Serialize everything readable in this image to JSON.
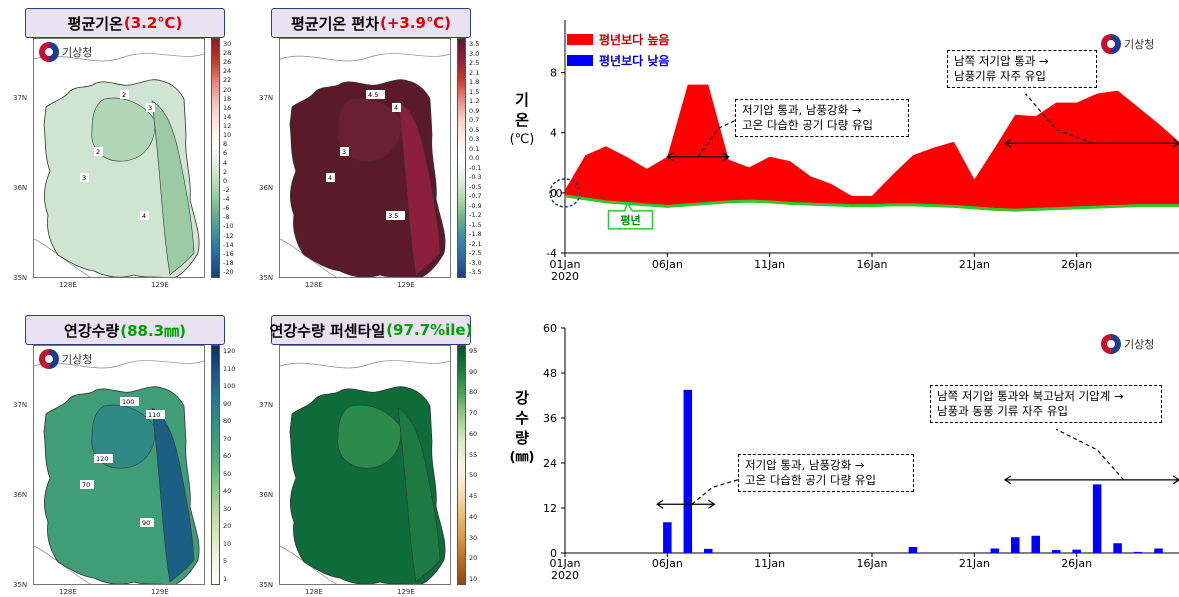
{
  "maps": {
    "temp": {
      "title": "평균기온",
      "highlight": "(3.2℃)",
      "hl_color": "#e00000",
      "cbar_labels": [
        "30",
        "28",
        "26",
        "24",
        "22",
        "20",
        "18",
        "16",
        "14",
        "12",
        "10",
        "8",
        "6",
        "4",
        "2",
        "0",
        "-2",
        "-4",
        "-6",
        "-8",
        "-10",
        "-12",
        "-14",
        "-16",
        "-18",
        "-20"
      ],
      "contour_labels": [
        "2",
        "3",
        "2",
        "3",
        "4"
      ]
    },
    "anom": {
      "title": "평균기온 편차",
      "highlight": "(+3.9℃)",
      "hl_color": "#e00000",
      "cbar_labels": [
        "3.5",
        "3.0",
        "2.5",
        "2.1",
        "1.8",
        "1.5",
        "1.2",
        "0.9",
        "0.7",
        "0.5",
        "0.3",
        "0.1",
        "0.0",
        "-0.1",
        "-0.3",
        "-0.5",
        "-0.7",
        "-0.9",
        "-1.2",
        "-1.5",
        "-1.8",
        "-2.1",
        "-2.5",
        "-3.0",
        "-3.5"
      ],
      "contour_labels": [
        "4.5",
        "4",
        "3",
        "4",
        "3.5"
      ]
    },
    "precip": {
      "title": "연강수량",
      "highlight": "(88.3㎜)",
      "hl_color": "#00a000",
      "cbar_labels": [
        "120",
        "110",
        "100",
        "90",
        "80",
        "70",
        "60",
        "50",
        "40",
        "30",
        "20",
        "10",
        "5",
        "1"
      ],
      "contour_labels": [
        "100",
        "110",
        "120",
        "70",
        "90"
      ]
    },
    "pct": {
      "title": "연강수량 퍼센타일",
      "highlight": "(97.7%ile)",
      "hl_color": "#00a000",
      "cbar_labels": [
        "95",
        "90",
        "80",
        "70",
        "60",
        "55",
        "50",
        "45",
        "40",
        "30",
        "20",
        "10"
      ],
      "contour_labels": []
    },
    "lat_labels": [
      "37N",
      "36N",
      "35N"
    ],
    "lon_labels": [
      "128E",
      "129E"
    ],
    "agency": "기상청"
  },
  "chart_data": [
    {
      "type": "area",
      "title": "",
      "ylabel_chars": [
        "기",
        "온",
        "(℃)"
      ],
      "xlabel": "",
      "x_ticks": [
        "01Jan\n2020",
        "06Jan",
        "11Jan",
        "16Jan",
        "21Jan",
        "26Jan"
      ],
      "x_tick_days": [
        1,
        6,
        11,
        16,
        21,
        26
      ],
      "y_ticks": [
        -4,
        0,
        4,
        8
      ],
      "ylim": [
        -4,
        11.5
      ],
      "xlim": [
        1,
        31
      ],
      "days": [
        1,
        2,
        3,
        4,
        5,
        6,
        7,
        8,
        9,
        10,
        11,
        12,
        13,
        14,
        15,
        16,
        17,
        18,
        19,
        20,
        21,
        22,
        23,
        24,
        25,
        26,
        27,
        28,
        29,
        30,
        31
      ],
      "temperature": [
        0.2,
        2.5,
        3.1,
        2.4,
        1.6,
        2.4,
        7.2,
        7.2,
        2.2,
        1.7,
        2.4,
        2.1,
        1.1,
        0.6,
        -0.2,
        -0.2,
        1.2,
        2.5,
        3.0,
        3.4,
        0.9,
        3.0,
        5.2,
        5.1,
        6.0,
        6.0,
        6.6,
        6.8,
        5.7,
        4.6,
        3.4
      ],
      "normal": [
        -0.2,
        -0.4,
        -0.6,
        -0.7,
        -0.8,
        -0.9,
        -0.8,
        -0.7,
        -0.6,
        -0.55,
        -0.6,
        -0.7,
        -0.75,
        -0.8,
        -0.85,
        -0.85,
        -0.8,
        -0.8,
        -0.85,
        -0.9,
        -1.0,
        -1.1,
        -1.15,
        -1.1,
        -1.05,
        -1.0,
        -0.95,
        -0.9,
        -0.85,
        -0.85,
        -0.85
      ],
      "legend": [
        {
          "name": "평년보다 높음",
          "color": "#ff0000"
        },
        {
          "name": "평년보다 낮음",
          "color": "#0000ff"
        }
      ],
      "normal_label": "평년",
      "normal_color": "#2ec82e",
      "zero_label": "0",
      "annotations": [
        {
          "lines": [
            "저기압 통과, 남풍강화 →",
            "고온 다습한 공기 다량 유입"
          ]
        },
        {
          "lines": [
            "남쪽 저기압 통과 →",
            "남풍기류 자주 유입"
          ]
        }
      ],
      "agency": "기상청"
    },
    {
      "type": "bar",
      "title": "",
      "ylabel_chars": [
        "강",
        "수",
        "량",
        "(㎜)"
      ],
      "xlabel": "",
      "x_ticks": [
        "01Jan\n2020",
        "06Jan",
        "11Jan",
        "16Jan",
        "21Jan",
        "26Jan"
      ],
      "x_tick_days": [
        1,
        6,
        11,
        16,
        21,
        26
      ],
      "y_ticks": [
        0,
        12,
        24,
        36,
        48,
        60
      ],
      "ylim": [
        0,
        60
      ],
      "xlim": [
        1,
        31
      ],
      "days": [
        6,
        7,
        8,
        18,
        22,
        23,
        24,
        25,
        26,
        27,
        28,
        29,
        30
      ],
      "values": [
        8.2,
        43.5,
        1.1,
        1.6,
        1.2,
        4.2,
        4.6,
        0.8,
        0.9,
        18.3,
        2.6,
        0.3,
        1.2
      ],
      "bar_color": "#0000ff",
      "annotations": [
        {
          "lines": [
            "저기압 통과, 남풍강화 →",
            "고온 다습한 공기 다량 유입"
          ]
        },
        {
          "lines": [
            "남쪽 저기압 통과와 북고남저 기압계 →",
            "남풍과 동풍 기류 자주 유입"
          ]
        }
      ],
      "agency": "기상청"
    }
  ]
}
